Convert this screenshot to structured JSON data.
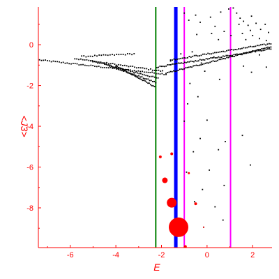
{
  "chart_data": {
    "type": "scatter",
    "xlabel": "E",
    "ylabel": "<J3>",
    "xlim": [
      -7.4,
      2.85
    ],
    "ylim": [
      -9.95,
      1.85
    ],
    "x_ticks": [
      -6,
      -4,
      -2,
      0,
      2
    ],
    "y_ticks": [
      0,
      -2,
      -4,
      -6,
      -8
    ],
    "colors": {
      "axes": "#ff0000",
      "points": "#000000",
      "highlight": "#ff0000",
      "green_line": "#008000",
      "blue_line": "#0000ff",
      "magenta_line": "#ff00ff"
    },
    "vertical_lines": [
      {
        "x": -2.25,
        "color": "green_line",
        "weight": "thin"
      },
      {
        "x": -1.37,
        "color": "blue_line",
        "weight": "thick"
      },
      {
        "x": -1.0,
        "color": "magenta_line",
        "weight": "thin"
      },
      {
        "x": 1.03,
        "color": "magenta_line",
        "weight": "thin"
      }
    ],
    "highlight_points": [
      {
        "x": -2.05,
        "y": -5.5,
        "r": 2
      },
      {
        "x": -1.55,
        "y": -5.35,
        "r": 2
      },
      {
        "x": -1.85,
        "y": -6.65,
        "r": 4
      },
      {
        "x": -1.55,
        "y": -7.75,
        "r": 7
      },
      {
        "x": -1.25,
        "y": -8.95,
        "r": 14
      },
      {
        "x": -0.8,
        "y": -6.3,
        "r": 1.5
      },
      {
        "x": -0.5,
        "y": -7.8,
        "r": 2
      },
      {
        "x": -0.15,
        "y": -8.95,
        "r": 1
      },
      {
        "x": -0.95,
        "y": -9.9,
        "r": 2
      }
    ],
    "scatter_branches": [
      {
        "x_start": -7.35,
        "y_start": -0.75,
        "x_end": -1.8,
        "y_end": -1.45,
        "n": 65
      },
      {
        "x_start": -5.8,
        "y_start": -0.68,
        "x_end": -1.95,
        "y_end": -1.3,
        "n": 45
      },
      {
        "x_start": -5.1,
        "y_start": -0.78,
        "x_end": -2.15,
        "y_end": -1.65,
        "n": 40
      },
      {
        "x_start": -4.55,
        "y_start": -0.92,
        "x_end": -2.25,
        "y_end": -1.85,
        "n": 35
      },
      {
        "x_start": -4.0,
        "y_start": -1.05,
        "x_end": -2.3,
        "y_end": -2.05,
        "n": 30
      },
      {
        "x_start": -5.5,
        "y_start": -0.58,
        "x_end": -3.2,
        "y_end": -0.45,
        "n": 25
      },
      {
        "x_start": -1.8,
        "y_start": -1.4,
        "x_end": 2.8,
        "y_end": -0.1,
        "n": 70
      },
      {
        "x_start": -2.2,
        "y_start": -1.1,
        "x_end": 2.8,
        "y_end": -0.2,
        "n": 75
      },
      {
        "x_start": -1.6,
        "y_start": -0.75,
        "x_end": 2.8,
        "y_end": 0.05,
        "n": 60
      }
    ],
    "scatter_points": [
      [
        -1.0,
        1.55
      ],
      [
        -0.8,
        1.2
      ],
      [
        -0.5,
        1.45
      ],
      [
        -0.3,
        1.1
      ],
      [
        0.15,
        1.35
      ],
      [
        0.35,
        0.9
      ],
      [
        0.6,
        1.6
      ],
      [
        0.95,
        1.75
      ],
      [
        1.15,
        1.8
      ],
      [
        1.3,
        1.55
      ],
      [
        1.45,
        1.3
      ],
      [
        1.6,
        1.15
      ],
      [
        1.8,
        0.95
      ],
      [
        1.95,
        1.4
      ],
      [
        2.15,
        1.05
      ],
      [
        2.35,
        0.75
      ],
      [
        2.55,
        1.0
      ],
      [
        2.7,
        0.6
      ],
      [
        1.05,
        0.45
      ],
      [
        1.55,
        0.55
      ],
      [
        2.0,
        0.45
      ],
      [
        2.3,
        0.3
      ],
      [
        0.75,
        0.65
      ],
      [
        0.2,
        0.55
      ],
      [
        -0.45,
        0.5
      ],
      [
        1.4,
        1.0
      ],
      [
        1.9,
        0.7
      ],
      [
        2.6,
        0.2
      ],
      [
        0.5,
        0.25
      ],
      [
        1.7,
        0.25
      ],
      [
        -1.6,
        -0.8
      ],
      [
        -1.15,
        -0.45
      ],
      [
        -0.65,
        -0.35
      ],
      [
        -0.25,
        -0.9
      ],
      [
        0.3,
        -0.6
      ],
      [
        -0.1,
        -1.3
      ],
      [
        0.55,
        -1.7
      ],
      [
        -0.75,
        -1.9
      ],
      [
        1.6,
        -1.05
      ],
      [
        2.3,
        -0.5
      ],
      [
        2.6,
        -1.1
      ],
      [
        1.95,
        -1.35
      ],
      [
        -0.85,
        -2.9
      ],
      [
        -0.4,
        -2.55
      ],
      [
        0.0,
        -3.7
      ],
      [
        -1.0,
        -3.75
      ],
      [
        -0.3,
        -4.6
      ],
      [
        0.8,
        -4.75
      ],
      [
        1.55,
        -4.45
      ],
      [
        -0.6,
        -5.25
      ],
      [
        0.5,
        -5.15
      ],
      [
        1.9,
        -5.9
      ],
      [
        -0.9,
        -6.25
      ],
      [
        0.1,
        -6.15
      ],
      [
        0.75,
        -6.9
      ],
      [
        -0.2,
        -7.1
      ],
      [
        -0.55,
        -7.7
      ],
      [
        0.35,
        -7.95
      ],
      [
        0.7,
        -8.6
      ],
      [
        -0.15,
        -8.95
      ]
    ]
  }
}
